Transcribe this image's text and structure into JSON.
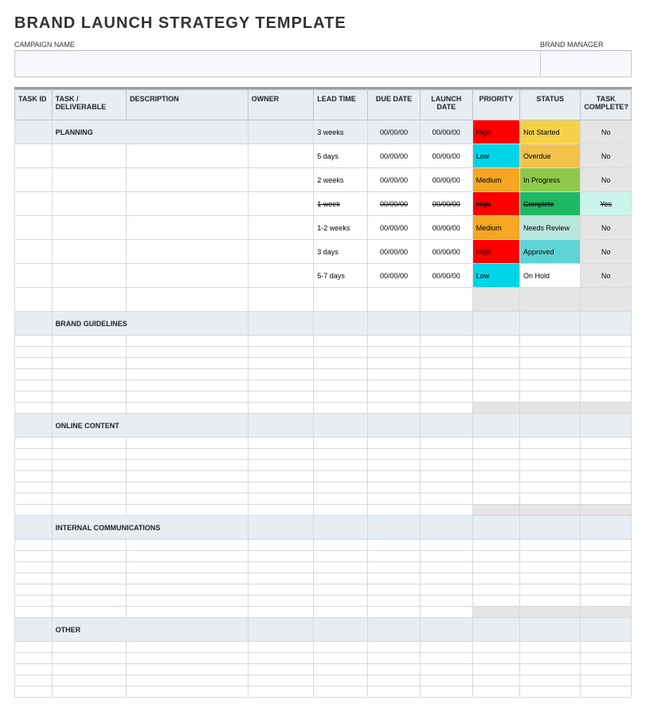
{
  "title": "BRAND LAUNCH STRATEGY TEMPLATE",
  "fields": {
    "campaign_label": "CAMPAIGN NAME",
    "manager_label": "BRAND MANAGER"
  },
  "columns": {
    "task_id": "TASK ID",
    "deliverable": "TASK / DELIVERABLE",
    "description": "DESCRIPTION",
    "owner": "OWNER",
    "lead_time": "LEAD TIME",
    "due_date": "DUE DATE",
    "launch_date": "LAUNCH DATE",
    "priority": "PRIORITY",
    "status": "STATUS",
    "complete": "TASK COMPLETE?"
  },
  "sections": {
    "planning": "PLANNING",
    "guidelines": "BRAND GUIDELINES",
    "online": "ONLINE CONTENT",
    "internal": "INTERNAL COMMUNICATIONS",
    "other": "OTHER"
  },
  "planning_rows": [
    {
      "lead": "3 weeks",
      "due": "00/00/00",
      "launch": "00/00/00",
      "priority": "High",
      "status": "Not Started",
      "complete": "No",
      "strike": false,
      "prio_bg": "#ff0000",
      "prio_fg": "#000000",
      "status_bg": "#f3d24a",
      "status_fg": "#000000",
      "complete_bg": "#e4e4e4",
      "in_section": true
    },
    {
      "lead": "5 days",
      "due": "00/00/00",
      "launch": "00/00/00",
      "priority": "Low",
      "status": "Overdue",
      "complete": "No",
      "strike": false,
      "prio_bg": "#00d4e6",
      "prio_fg": "#000000",
      "status_bg": "#f2c24b",
      "status_fg": "#000000",
      "complete_bg": "#e4e4e4",
      "in_section": false
    },
    {
      "lead": "2 weeks",
      "due": "00/00/00",
      "launch": "00/00/00",
      "priority": "Medium",
      "status": "In Progress",
      "complete": "No",
      "strike": false,
      "prio_bg": "#f5a623",
      "prio_fg": "#000000",
      "status_bg": "#8fc94a",
      "status_fg": "#000000",
      "complete_bg": "#e4e4e4",
      "in_section": false
    },
    {
      "lead": "1 week",
      "due": "00/00/00",
      "launch": "00/00/00",
      "priority": "High",
      "status": "Complete",
      "complete": "Yes",
      "strike": true,
      "prio_bg": "#ff0000",
      "prio_fg": "#000000",
      "status_bg": "#1fb862",
      "status_fg": "#000000",
      "complete_bg": "#c9f5ea",
      "in_section": false
    },
    {
      "lead": "1-2 weeks",
      "due": "00/00/00",
      "launch": "00/00/00",
      "priority": "Medium",
      "status": "Needs Review",
      "complete": "No",
      "strike": false,
      "prio_bg": "#f5a623",
      "prio_fg": "#000000",
      "status_bg": "#b9e6df",
      "status_fg": "#000000",
      "complete_bg": "#e4e4e4",
      "in_section": false
    },
    {
      "lead": "3 days",
      "due": "00/00/00",
      "launch": "00/00/00",
      "priority": "High",
      "status": "Approved",
      "complete": "No",
      "strike": false,
      "prio_bg": "#ff0000",
      "prio_fg": "#000000",
      "status_bg": "#5fd4d6",
      "status_fg": "#000000",
      "complete_bg": "#e4e4e4",
      "in_section": false
    },
    {
      "lead": "5-7 days",
      "due": "00/00/00",
      "launch": "00/00/00",
      "priority": "Low",
      "status": "On Hold",
      "complete": "No",
      "strike": false,
      "prio_bg": "#00d4e6",
      "prio_fg": "#000000",
      "status_bg": "#ffffff",
      "status_fg": "#000000",
      "complete_bg": "#e4e4e4",
      "in_section": false
    }
  ],
  "colors": {
    "header_bg": "#e8edf2",
    "section_bg": "#e8edf2",
    "border": "#d6d9dc",
    "grey_cell": "#e4e4e4"
  }
}
